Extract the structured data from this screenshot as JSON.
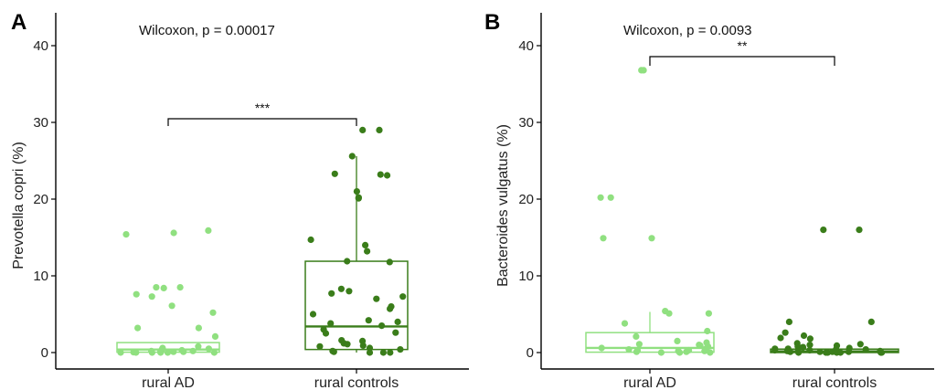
{
  "colors": {
    "light_green": "#90e080",
    "dark_green": "#3a7d1a"
  },
  "chart_data": [
    {
      "panel": "A",
      "type": "box",
      "ylabel": "Prevotella copri (%)",
      "ylim": [
        -2,
        44
      ],
      "yticks": [
        0,
        10,
        20,
        30,
        40
      ],
      "categories": [
        "rural AD",
        "rural controls"
      ],
      "annotation": "Wilcoxon, p = 0.00017",
      "significance": "***",
      "boxes": [
        {
          "group": "rural AD",
          "color": "light_green",
          "min": 0,
          "q1": 0.05,
          "median": 0.4,
          "q3": 1.3,
          "max": 1.3
        },
        {
          "group": "rural controls",
          "color": "dark_green",
          "min": 0,
          "q1": 0.4,
          "median": 3.4,
          "q3": 11.9,
          "max": 25.6
        }
      ],
      "points": [
        {
          "group": "rural AD",
          "values": [
            15.9,
            15.4,
            15.6,
            8.5,
            8.4,
            8.5,
            7.6,
            7.3,
            6.1,
            5.2,
            3.2,
            3.2,
            2.1,
            0.8,
            0.6,
            0.5,
            0.4,
            0.3,
            0.2,
            0.2,
            0.1,
            0.1,
            0.1,
            0.05,
            0.0,
            0.0,
            0.0,
            0.0,
            0.0,
            0.0
          ]
        },
        {
          "group": "rural controls",
          "values": [
            29.0,
            29.0,
            25.6,
            23.3,
            23.1,
            23.2,
            21.0,
            20.2,
            20.1,
            14.7,
            14.0,
            13.2,
            11.9,
            11.8,
            8.3,
            8.0,
            7.7,
            7.3,
            7.0,
            6.0,
            5.7,
            5.0,
            4.2,
            4.0,
            3.8,
            3.5,
            3.0,
            2.6,
            2.5,
            1.6,
            1.5,
            1.2,
            1.1,
            0.9,
            0.8,
            0.6,
            0.4,
            0.2,
            0.1,
            0.0,
            0.0,
            0.0
          ]
        }
      ]
    },
    {
      "panel": "B",
      "type": "box",
      "ylabel": "Bacteroides vulgatus (%)",
      "ylim": [
        -2,
        44
      ],
      "yticks": [
        0,
        10,
        20,
        30,
        40
      ],
      "categories": [
        "rural AD",
        "rural controls"
      ],
      "annotation": "Wilcoxon, p = 0.0093",
      "significance": "**",
      "boxes": [
        {
          "group": "rural AD",
          "color": "light_green",
          "min": 0,
          "q1": 0.05,
          "median": 0.6,
          "q3": 2.6,
          "max": 5.3
        },
        {
          "group": "rural controls",
          "color": "dark_green",
          "min": 0,
          "q1": 0.0,
          "median": 0.15,
          "q3": 0.45,
          "max": 1.1
        }
      ],
      "points": [
        {
          "group": "rural AD",
          "values": [
            36.8,
            36.8,
            20.2,
            20.2,
            14.9,
            14.9,
            5.4,
            5.1,
            5.1,
            3.8,
            2.8,
            2.1,
            1.5,
            1.3,
            1.1,
            1.0,
            0.9,
            0.8,
            0.6,
            0.5,
            0.4,
            0.3,
            0.3,
            0.2,
            0.2,
            0.1,
            0.1,
            0.0,
            0.0,
            0.0
          ]
        },
        {
          "group": "rural controls",
          "values": [
            16.0,
            16.0,
            4.0,
            4.0,
            2.6,
            2.2,
            1.9,
            1.8,
            1.2,
            1.1,
            1.0,
            0.9,
            0.8,
            0.7,
            0.6,
            0.5,
            0.5,
            0.4,
            0.4,
            0.3,
            0.3,
            0.2,
            0.2,
            0.2,
            0.1,
            0.1,
            0.1,
            0.1,
            0.1,
            0.0,
            0.0,
            0.0,
            0.0,
            0.0,
            0.0,
            0.0
          ]
        }
      ]
    }
  ]
}
